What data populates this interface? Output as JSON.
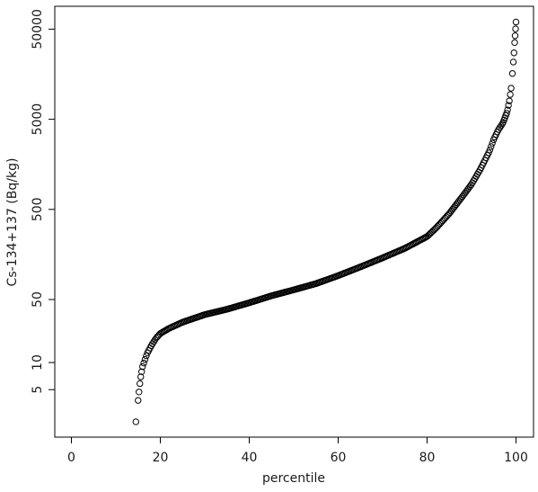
{
  "chart_data": {
    "type": "scatter",
    "title": "",
    "xlabel": "percentile",
    "ylabel": "Cs-134+137 (Bq/kg)",
    "xlim": [
      -3,
      103
    ],
    "ylim": [
      1.4,
      90000
    ],
    "y_scale": "log",
    "grid": false,
    "legend": "none",
    "marker": "open-circle",
    "x_ticks": [
      0,
      20,
      40,
      60,
      80,
      100
    ],
    "x_tick_labels": [
      "0",
      "20",
      "40",
      "60",
      "80",
      "100"
    ],
    "y_ticks": [
      5,
      10,
      50,
      500,
      5000,
      50000
    ],
    "y_tick_labels": [
      "5",
      "10",
      "50",
      "500",
      "5000",
      "50000"
    ],
    "curve_anchors": {
      "x": [
        14.5,
        15,
        15.5,
        16,
        17,
        18,
        19,
        20,
        22,
        25,
        30,
        35,
        40,
        45,
        50,
        55,
        60,
        65,
        70,
        75,
        80,
        82,
        85,
        88,
        90,
        92,
        94,
        95,
        96,
        97,
        98,
        98.5,
        99,
        99.5,
        100
      ],
      "y": [
        2.2,
        3.8,
        6.5,
        9.0,
        12.5,
        15.5,
        18.5,
        21.0,
        24.0,
        28.0,
        34.0,
        39.0,
        46.0,
        55.0,
        64.0,
        75.0,
        92.0,
        115.0,
        145.0,
        185.0,
        250.0,
        310.0,
        450.0,
        700.0,
        950.0,
        1400.0,
        2200.0,
        3000.0,
        3800.0,
        4500.0,
        6000.0,
        8000.0,
        12000.0,
        25000.0,
        60000.0
      ]
    },
    "colors": {
      "points": "#000000",
      "axes": "#000000",
      "text": "#1a1a1a"
    }
  }
}
